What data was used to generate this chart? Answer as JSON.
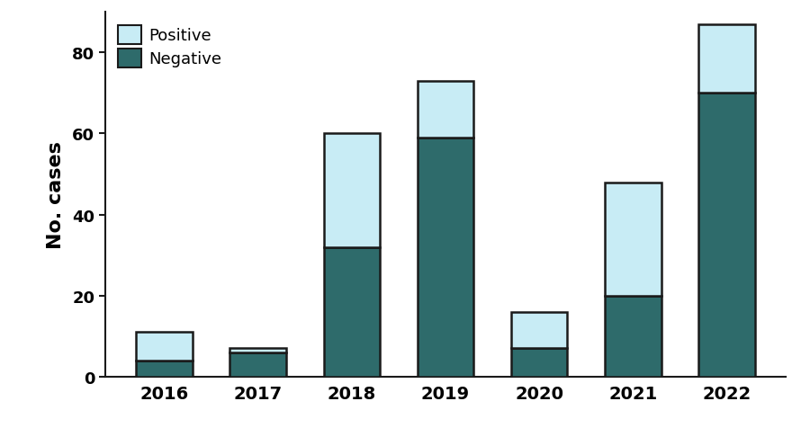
{
  "years": [
    "2016",
    "2017",
    "2018",
    "2019",
    "2020",
    "2021",
    "2022"
  ],
  "negative": [
    4,
    6,
    32,
    59,
    7,
    20,
    70
  ],
  "positive": [
    7,
    1,
    28,
    14,
    9,
    28,
    17
  ],
  "color_negative": "#2e6b6b",
  "color_positive": "#c8ecf5",
  "ylabel": "No. cases",
  "legend_positive": "Positive",
  "legend_negative": "Negative",
  "yticks": [
    0,
    20,
    40,
    60,
    80
  ],
  "ylim": [
    0,
    90
  ],
  "bar_width": 0.6,
  "background_color": "#ffffff",
  "edge_color": "#1a1a1a",
  "edge_linewidth": 1.8
}
